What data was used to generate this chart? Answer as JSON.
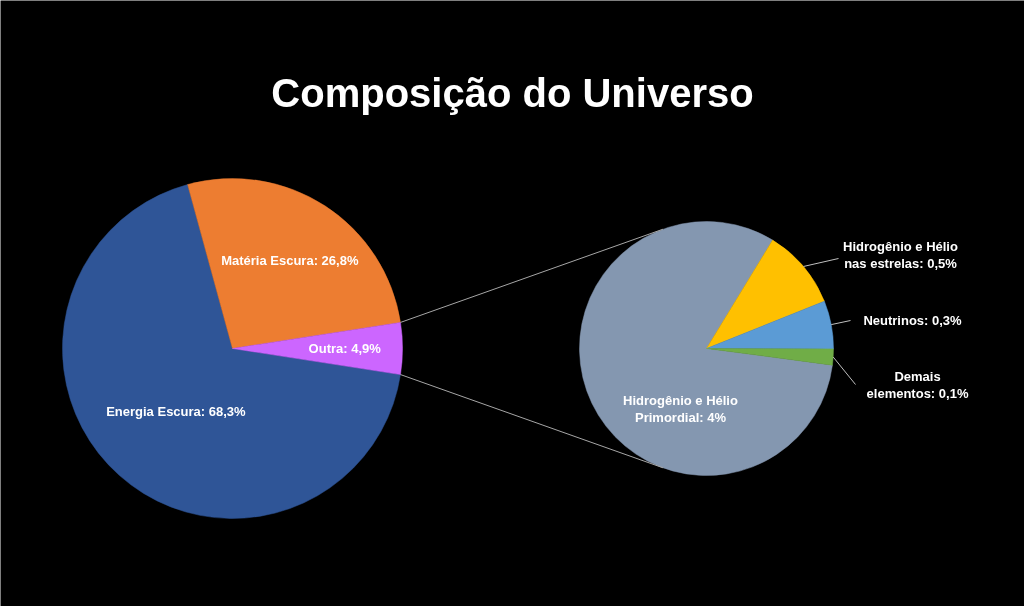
{
  "chart_data": [
    {
      "type": "pie",
      "title": "Composição do Universo",
      "categories": [
        "Energia Escura",
        "Matéria Escura",
        "Outra"
      ],
      "values": [
        68.3,
        26.8,
        4.9
      ],
      "colors": [
        "#2f5597",
        "#ed7d31",
        "#cc66ff"
      ],
      "value_labels": [
        "68,3%",
        "26,8%",
        "4,9%"
      ]
    },
    {
      "type": "pie",
      "categories": [
        "Hidrogênio e Hélio Primordial",
        "Hidrogênio e Hélio nas estrelas",
        "Neutrinos",
        "Demais elementos"
      ],
      "values": [
        4,
        0.5,
        0.3,
        0.1
      ],
      "colors": [
        "#8497b0",
        "#ffc000",
        "#5b9bd5",
        "#70ad47"
      ],
      "value_labels": [
        "4%",
        "0,5%",
        "0,3%",
        "0,1%"
      ]
    }
  ]
}
